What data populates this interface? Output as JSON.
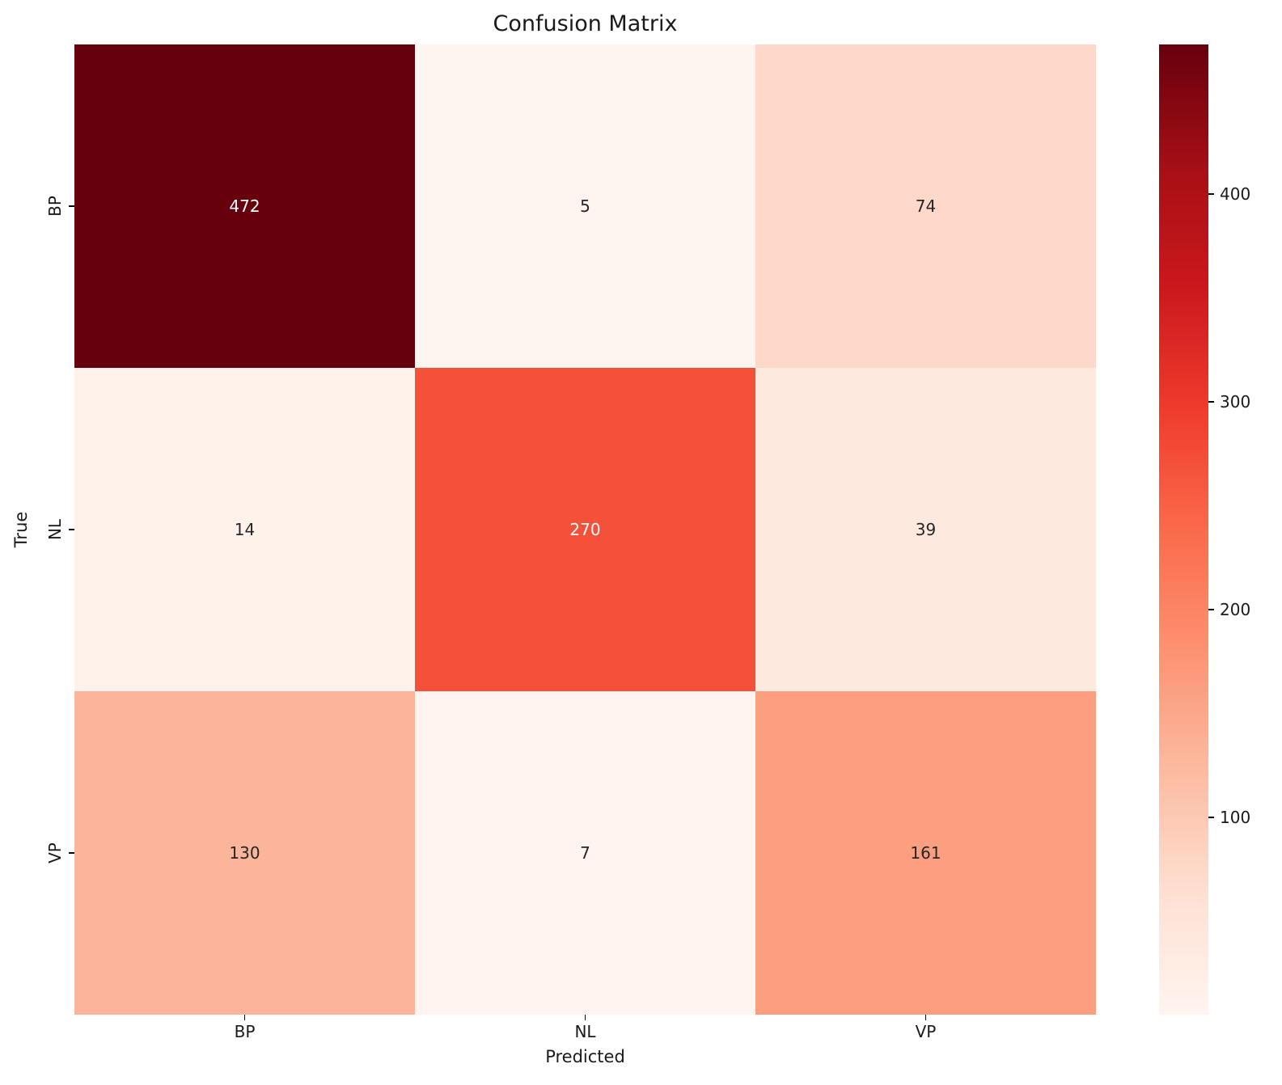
{
  "title": "Confusion Matrix",
  "chart_data": {
    "type": "heatmap",
    "title": "Confusion Matrix",
    "xlabel": "Predicted",
    "ylabel": "True",
    "x_categories": [
      "BP",
      "NL",
      "VP"
    ],
    "y_categories": [
      "BP",
      "NL",
      "VP"
    ],
    "values": [
      [
        472,
        5,
        74
      ],
      [
        14,
        270,
        39
      ],
      [
        130,
        7,
        161
      ]
    ],
    "vmin": 5,
    "vmax": 472,
    "colormap": "Reds",
    "legend": "none",
    "grid": false,
    "cell_colors": [
      [
        "#67000d",
        "#fff5f0",
        "#fed9c9"
      ],
      [
        "#fff2eb",
        "#f5513a",
        "#fee9df"
      ],
      [
        "#fcb59b",
        "#fff4ef",
        "#fc9f81"
      ]
    ],
    "text_colors": [
      [
        "#ffffff",
        "#262626",
        "#262626"
      ],
      [
        "#262626",
        "#ffffff",
        "#262626"
      ],
      [
        "#262626",
        "#262626",
        "#262626"
      ]
    ],
    "colorbar": {
      "position": "right",
      "ticks": [
        400,
        300,
        200,
        100
      ],
      "gradient_stops": [
        "#fff5f0",
        "#fee0d2",
        "#fcbba1",
        "#fc9272",
        "#fb6a4a",
        "#ef3b2c",
        "#cb181d",
        "#a50f15",
        "#67000d"
      ]
    }
  }
}
